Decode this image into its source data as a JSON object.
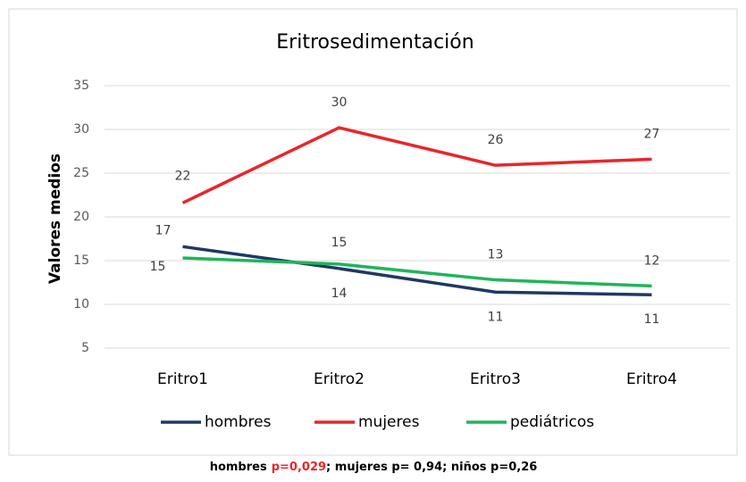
{
  "chart_data": {
    "type": "line",
    "title": "Eritrosedimentación",
    "y_label": "Valores medios",
    "categories": [
      "Eritro1",
      "Eritro2",
      "Eritro3",
      "Eritro4"
    ],
    "series": [
      {
        "name": "hombres",
        "color": "#1f3864",
        "values": [
          16.6,
          14.1,
          11.4,
          11.1
        ],
        "value_labels": [
          "17",
          "14",
          "11",
          "11"
        ]
      },
      {
        "name": "mujeres",
        "color": "#e8262b",
        "values": [
          21.6,
          30.2,
          25.9,
          26.6
        ],
        "value_labels": [
          "22",
          "30",
          "26",
          "27"
        ]
      },
      {
        "name": "pediátricos",
        "color": "#1fb55a",
        "values": [
          15.3,
          14.6,
          12.8,
          12.1
        ],
        "value_labels": [
          "15",
          "15",
          "13",
          "12"
        ]
      }
    ],
    "ylim": [
      5,
      35
    ],
    "yticks": [
      5,
      10,
      15,
      20,
      25,
      30,
      35
    ],
    "grid": true,
    "legend": "bottom",
    "caption": [
      {
        "text": "hombres"
      },
      {
        "text": "p=0,029",
        "color": "#e8262b"
      },
      {
        "text": "; mujeres p= 0,94; niños p=0,26"
      }
    ]
  }
}
